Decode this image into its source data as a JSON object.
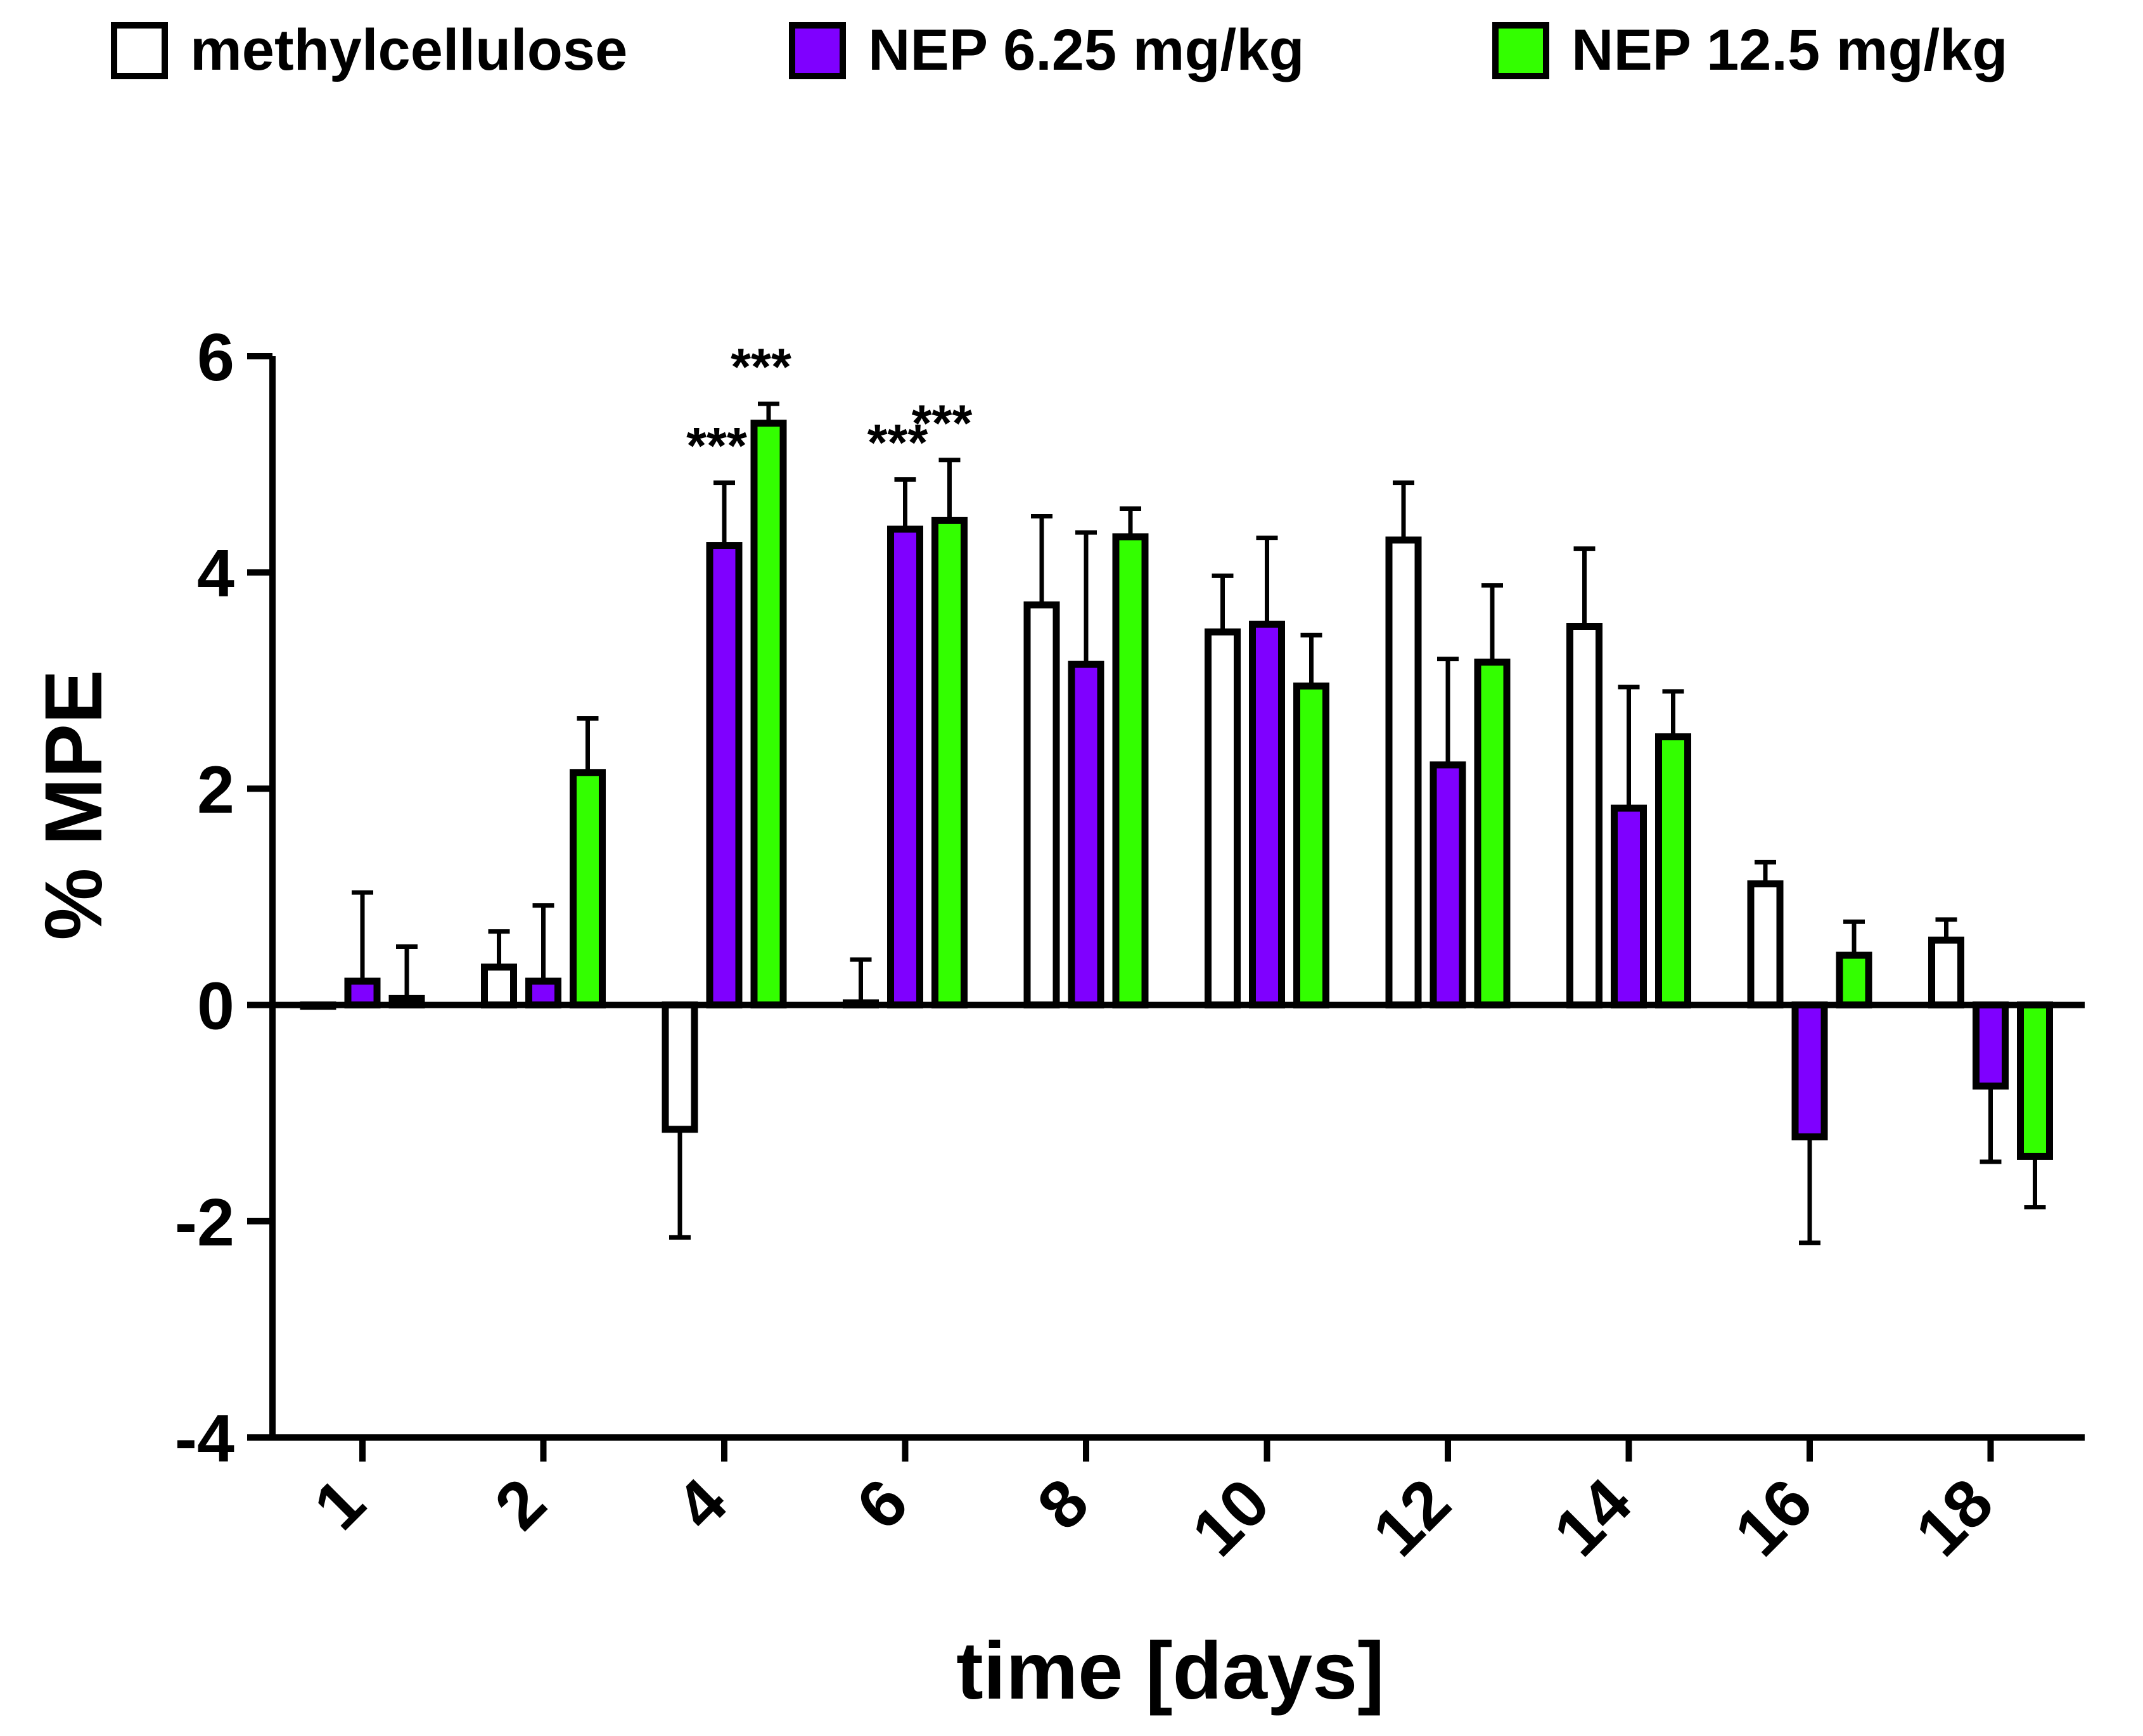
{
  "chart_data": {
    "type": "bar",
    "title": "",
    "xlabel": "time [days]",
    "ylabel": "% MPE",
    "ylim": [
      -4,
      6
    ],
    "yticks": [
      "6",
      "4",
      "2",
      "0",
      "-2",
      "-4"
    ],
    "categories": [
      "1",
      "2",
      "4",
      "6",
      "8",
      "10",
      "12",
      "14",
      "16",
      "18"
    ],
    "legend_position": "top",
    "grid": false,
    "series": [
      {
        "name": "methylcellulose",
        "color": "#ffffff",
        "values": [
          0.0,
          0.35,
          -1.15,
          0.02,
          3.7,
          3.45,
          4.3,
          3.5,
          1.12,
          0.6
        ],
        "errors": [
          0.0,
          0.33,
          1.0,
          0.4,
          0.82,
          0.52,
          0.53,
          0.72,
          0.2,
          0.19
        ]
      },
      {
        "name": "NEP 6.25 mg/kg",
        "color": "#7f00ff",
        "values": [
          0.22,
          0.22,
          4.25,
          4.4,
          3.15,
          3.52,
          2.22,
          1.82,
          -1.22,
          -0.75
        ],
        "errors": [
          0.82,
          0.7,
          0.58,
          0.46,
          1.22,
          0.8,
          0.98,
          1.12,
          0.98,
          0.7
        ]
      },
      {
        "name": "NEP 12.5 mg/kg",
        "color": "#33ff00",
        "values": [
          0.06,
          2.15,
          5.38,
          4.48,
          4.33,
          2.95,
          3.17,
          2.48,
          0.46,
          -1.4
        ],
        "errors": [
          0.48,
          0.5,
          0.18,
          0.56,
          0.26,
          0.47,
          0.71,
          0.42,
          0.31,
          0.47
        ]
      }
    ],
    "annotations": [
      {
        "category": "4",
        "series": "NEP 6.25 mg/kg",
        "text": "***"
      },
      {
        "category": "4",
        "series": "NEP 12.5 mg/kg",
        "text": "***"
      },
      {
        "category": "6",
        "series": "NEP 6.25 mg/kg",
        "text": "***"
      },
      {
        "category": "6",
        "series": "NEP 12.5 mg/kg",
        "text": "***"
      }
    ]
  }
}
